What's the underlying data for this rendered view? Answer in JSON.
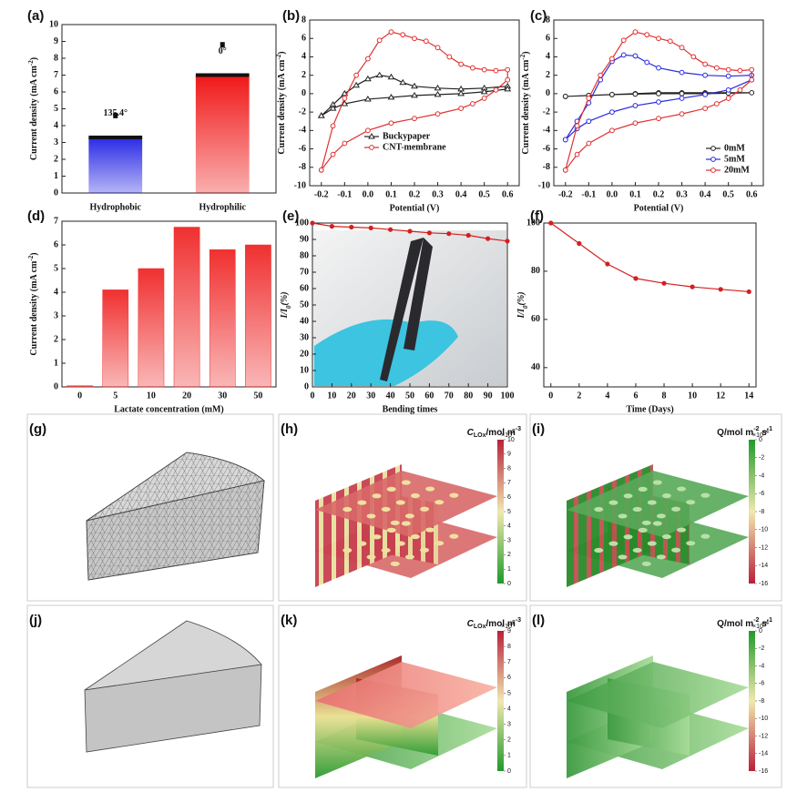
{
  "chart_data": [
    {
      "type": "bar",
      "label": "(a)",
      "ylabel": [
        "Current density (mA cm",
        "-2",
        ")"
      ],
      "categories": [
        "Hydrophobic",
        "Hydrophilic"
      ],
      "values": [
        3.3,
        7.0
      ],
      "colors": [
        "#2a2ae6",
        "#f01818"
      ],
      "category_colors": [
        "#2424c8",
        "#e02020"
      ],
      "markers": [
        4.6,
        8.8
      ],
      "annotations": [
        "135.4°",
        "0°"
      ],
      "ylim": [
        0,
        10
      ],
      "yticks": [
        0,
        1,
        2,
        3,
        4,
        5,
        6,
        7,
        8,
        9,
        10
      ]
    },
    {
      "type": "line",
      "label": "(b)",
      "ylabel": [
        "Current density (mA cm",
        "-2",
        ")"
      ],
      "xlabel": "Potential (V)",
      "series": [
        {
          "name": "Buckypaper",
          "color": "#222222",
          "marker": "triangle",
          "x": [
            -0.2,
            -0.15,
            -0.1,
            -0.05,
            0,
            0.05,
            0.1,
            0.15,
            0.2,
            0.3,
            0.4,
            0.5,
            0.6,
            0.6,
            0.5,
            0.4,
            0.3,
            0.2,
            0.1,
            0,
            -0.1,
            -0.15,
            -0.2
          ],
          "values": [
            -2.4,
            -1.2,
            0,
            0.9,
            1.6,
            2.0,
            1.8,
            1.2,
            0.8,
            0.6,
            0.5,
            0.6,
            0.8,
            0.5,
            0.2,
            0,
            -0.1,
            -0.2,
            -0.4,
            -0.6,
            -1.1,
            -1.6,
            -2.4
          ]
        },
        {
          "name": "CNT-membrane",
          "color": "#e03030",
          "marker": "circle",
          "x": [
            -0.2,
            -0.15,
            -0.1,
            -0.05,
            0,
            0.05,
            0.1,
            0.15,
            0.2,
            0.25,
            0.3,
            0.35,
            0.4,
            0.45,
            0.5,
            0.55,
            0.6,
            0.6,
            0.55,
            0.5,
            0.45,
            0.4,
            0.3,
            0.2,
            0.1,
            0,
            -0.1,
            -0.15,
            -0.2
          ],
          "values": [
            -8.3,
            -3.5,
            -0.5,
            2,
            3.8,
            5.8,
            6.7,
            6.4,
            6.0,
            5.7,
            5.0,
            4.0,
            3.2,
            2.8,
            2.6,
            2.5,
            2.6,
            1.5,
            0.4,
            -0.5,
            -1.1,
            -1.6,
            -2.2,
            -2.7,
            -3.2,
            -4.0,
            -5.4,
            -6.6,
            -8.3
          ]
        }
      ],
      "legend": "lower center",
      "legend_text_colored": false,
      "xlim": [
        -0.25,
        0.65
      ],
      "xticks": [
        -0.2,
        -0.1,
        {
          "value": 0,
          "label": "0.0"
        },
        0.1,
        0.2,
        0.3,
        0.4,
        0.5,
        0.6
      ],
      "ylim": [
        -10,
        8
      ],
      "yticks": [
        -10,
        -8,
        -6,
        -4,
        -2,
        0,
        2,
        4,
        6,
        8
      ]
    },
    {
      "type": "line",
      "label": "(c)",
      "ylabel": [
        "Current density (mA cm",
        "-2",
        ")"
      ],
      "xlabel": "Potential (V)",
      "series": [
        {
          "name": "0mM",
          "color": "#222222",
          "marker": "circle",
          "x": [
            -0.2,
            -0.1,
            0,
            0.1,
            0.2,
            0.3,
            0.4,
            0.5,
            0.6,
            0.5,
            0.4,
            0.3,
            0.2,
            0.1,
            0,
            -0.1,
            -0.2
          ],
          "values": [
            -0.3,
            -0.2,
            -0.1,
            0,
            0.1,
            0.1,
            0.1,
            0.1,
            0.1,
            0.05,
            0,
            0,
            0,
            -0.05,
            -0.1,
            -0.2,
            -0.3
          ]
        },
        {
          "name": "5mM",
          "color": "#2a2ae0",
          "marker": "circle",
          "x": [
            -0.2,
            -0.15,
            -0.1,
            -0.05,
            0,
            0.05,
            0.1,
            0.15,
            0.2,
            0.3,
            0.4,
            0.5,
            0.6,
            0.6,
            0.5,
            0.4,
            0.3,
            0.2,
            0.1,
            0,
            -0.1,
            -0.15,
            -0.2
          ],
          "values": [
            -5,
            -3,
            -1,
            1.5,
            3.5,
            4.2,
            4.1,
            3.4,
            2.8,
            2.3,
            2.0,
            1.9,
            2.0,
            1.5,
            0.4,
            -0.1,
            -0.5,
            -0.9,
            -1.3,
            -2,
            -3,
            -3.8,
            -5
          ]
        },
        {
          "name": "20mM",
          "color": "#e03030",
          "marker": "circle",
          "x": [
            -0.2,
            -0.15,
            -0.1,
            -0.05,
            0,
            0.05,
            0.1,
            0.15,
            0.2,
            0.25,
            0.3,
            0.35,
            0.4,
            0.45,
            0.5,
            0.55,
            0.6,
            0.6,
            0.55,
            0.5,
            0.45,
            0.4,
            0.3,
            0.2,
            0.1,
            0,
            -0.1,
            -0.15,
            -0.2
          ],
          "values": [
            -8.3,
            -3.5,
            -0.5,
            2,
            3.8,
            5.8,
            6.7,
            6.4,
            6.0,
            5.7,
            5.0,
            4.0,
            3.2,
            2.8,
            2.6,
            2.5,
            2.6,
            1.5,
            0.4,
            -0.5,
            -1.1,
            -1.6,
            -2.2,
            -2.7,
            -3.2,
            -4.0,
            -5.4,
            -6.6,
            -8.3
          ]
        }
      ],
      "legend": "lower right",
      "legend_text_colored": true,
      "xlim": [
        -0.25,
        0.65
      ],
      "xticks": [
        -0.2,
        -0.1,
        {
          "value": 0,
          "label": "0.0"
        },
        0.1,
        0.2,
        0.3,
        0.4,
        0.5,
        0.6
      ],
      "ylim": [
        -10,
        8
      ],
      "yticks": [
        -10,
        -8,
        -6,
        -4,
        -2,
        0,
        2,
        4,
        6,
        8
      ]
    },
    {
      "type": "bar",
      "label": "(d)",
      "ylabel": [
        "Current density (mA cm",
        "-2",
        ")"
      ],
      "xlabel": "Lactate concentration (mM)",
      "categories": [
        "0",
        "5",
        "10",
        "20",
        "30",
        "50"
      ],
      "values": [
        0.05,
        4.1,
        5.0,
        6.75,
        5.8,
        6.0
      ],
      "colors": [
        "#f03030"
      ],
      "ylim": [
        0,
        7
      ],
      "yticks": [
        0,
        1,
        2,
        3,
        4,
        5,
        6,
        7
      ]
    },
    {
      "type": "line",
      "label": "(e)",
      "ylabel": [
        "I/I",
        "0",
        "(%)"
      ],
      "xlabel": "Bending times",
      "x": [
        0,
        10,
        20,
        30,
        40,
        50,
        60,
        70,
        80,
        90,
        100
      ],
      "series": [
        {
          "color": "#d42020",
          "marker": "dot",
          "values": [
            100,
            98,
            97.5,
            97,
            96,
            95,
            94,
            93.5,
            92.5,
            90.5,
            89
          ]
        }
      ],
      "xlim": [
        0,
        100
      ],
      "xticks": [
        0,
        10,
        20,
        30,
        40,
        50,
        60,
        70,
        80,
        90,
        100
      ],
      "ylim": [
        0,
        100
      ],
      "yticks": [
        0,
        10,
        20,
        30,
        40,
        50,
        60,
        70,
        80,
        90,
        100
      ]
    },
    {
      "type": "line",
      "label": "(f)",
      "ylabel": [
        "I/I",
        "0",
        "(%)"
      ],
      "xlabel": "Time (Days)",
      "x": [
        0,
        2,
        4,
        6,
        8,
        10,
        12,
        14
      ],
      "series": [
        {
          "color": "#d42020",
          "marker": "dot",
          "values": [
            100,
            91.5,
            83,
            77,
            75,
            73.5,
            72.5,
            71.5
          ]
        }
      ],
      "xlim": [
        -0.5,
        14.5
      ],
      "xticks": [
        0,
        2,
        4,
        6,
        8,
        10,
        12,
        14
      ],
      "ylim": [
        32,
        100
      ],
      "yticks": [
        40,
        60,
        80,
        100
      ]
    }
  ],
  "renders": [
    {
      "label": "(g)"
    },
    {
      "label": "(h)",
      "title": [
        "C",
        "LOx",
        "/mol m",
        "-3"
      ],
      "exponent": [
        "×10",
        "2"
      ],
      "ticks": [
        10,
        9,
        8,
        7,
        6,
        5,
        4,
        3,
        2,
        1,
        0
      ]
    },
    {
      "label": "(i)",
      "title": [
        "Q/mol m",
        "-2",
        " s",
        "-1"
      ],
      "exponent": [
        "×10",
        "-4"
      ],
      "ticks": [
        0,
        -2,
        -4,
        -6,
        -8,
        -10,
        -12,
        -14,
        -16
      ]
    },
    {
      "label": "(j)"
    },
    {
      "label": "(k)",
      "title": [
        "C",
        "LOx",
        "/mol m",
        "-3"
      ],
      "exponent": [
        "×10",
        "2"
      ],
      "ticks": [
        9,
        8,
        7,
        6,
        5,
        4,
        3,
        2,
        1,
        0
      ]
    },
    {
      "label": "(l)",
      "title": [
        "Q/mol m",
        "-2",
        " s",
        "-1"
      ],
      "exponent": [
        "×10",
        "-4"
      ],
      "ticks": [
        0,
        -2,
        -4,
        -6,
        -8,
        -10,
        -12,
        -14,
        -16
      ]
    }
  ]
}
